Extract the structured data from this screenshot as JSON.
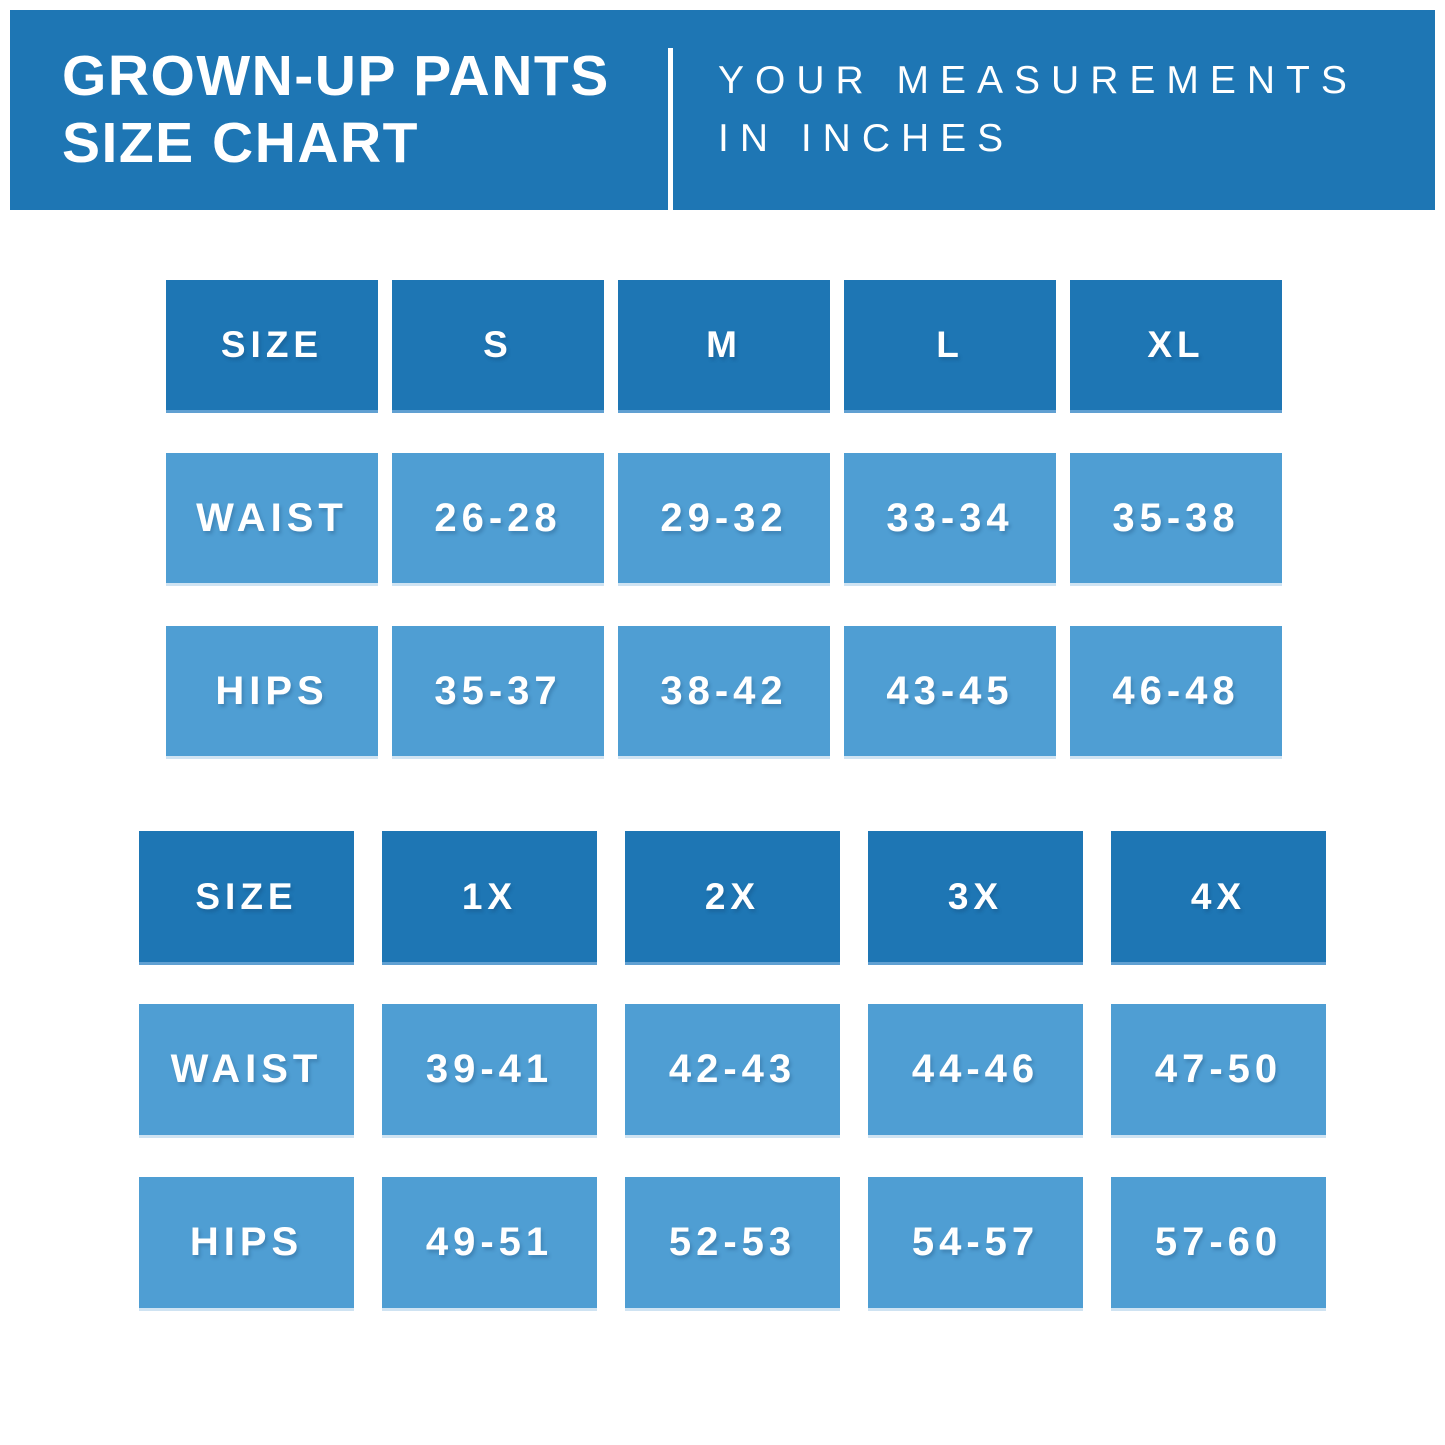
{
  "page_title": "GROWN-UP PANTS SIZE CHART",
  "header": {
    "title_line1": "GROWN-UP PANTS",
    "title_line2": "SIZE CHART",
    "subtitle_line1": "YOUR MEASUREMENTS",
    "subtitle_line2": "IN INCHES"
  },
  "colors": {
    "dark_blue": "#1e76b4",
    "light_blue": "#4f9ed3",
    "cell_edge_dark": "#60a0d2",
    "cell_edge_light": "#cfe3f2",
    "background": "#ffffff",
    "text": "#ffffff"
  },
  "chart_data": [
    {
      "type": "table",
      "units": "inches",
      "columns": [
        "SIZE",
        "S",
        "M",
        "L",
        "XL"
      ],
      "rows": [
        {
          "label": "WAIST",
          "values": [
            "26-28",
            "29-32",
            "33-34",
            "35-38"
          ]
        },
        {
          "label": "HIPS",
          "values": [
            "35-37",
            "38-42",
            "43-45",
            "46-48"
          ]
        }
      ]
    },
    {
      "type": "table",
      "units": "inches",
      "columns": [
        "SIZE",
        "1X",
        "2X",
        "3X",
        "4X"
      ],
      "rows": [
        {
          "label": "WAIST",
          "values": [
            "39-41",
            "42-43",
            "44-46",
            "47-50"
          ]
        },
        {
          "label": "HIPS",
          "values": [
            "49-51",
            "52-53",
            "54-57",
            "57-60"
          ]
        }
      ]
    }
  ]
}
